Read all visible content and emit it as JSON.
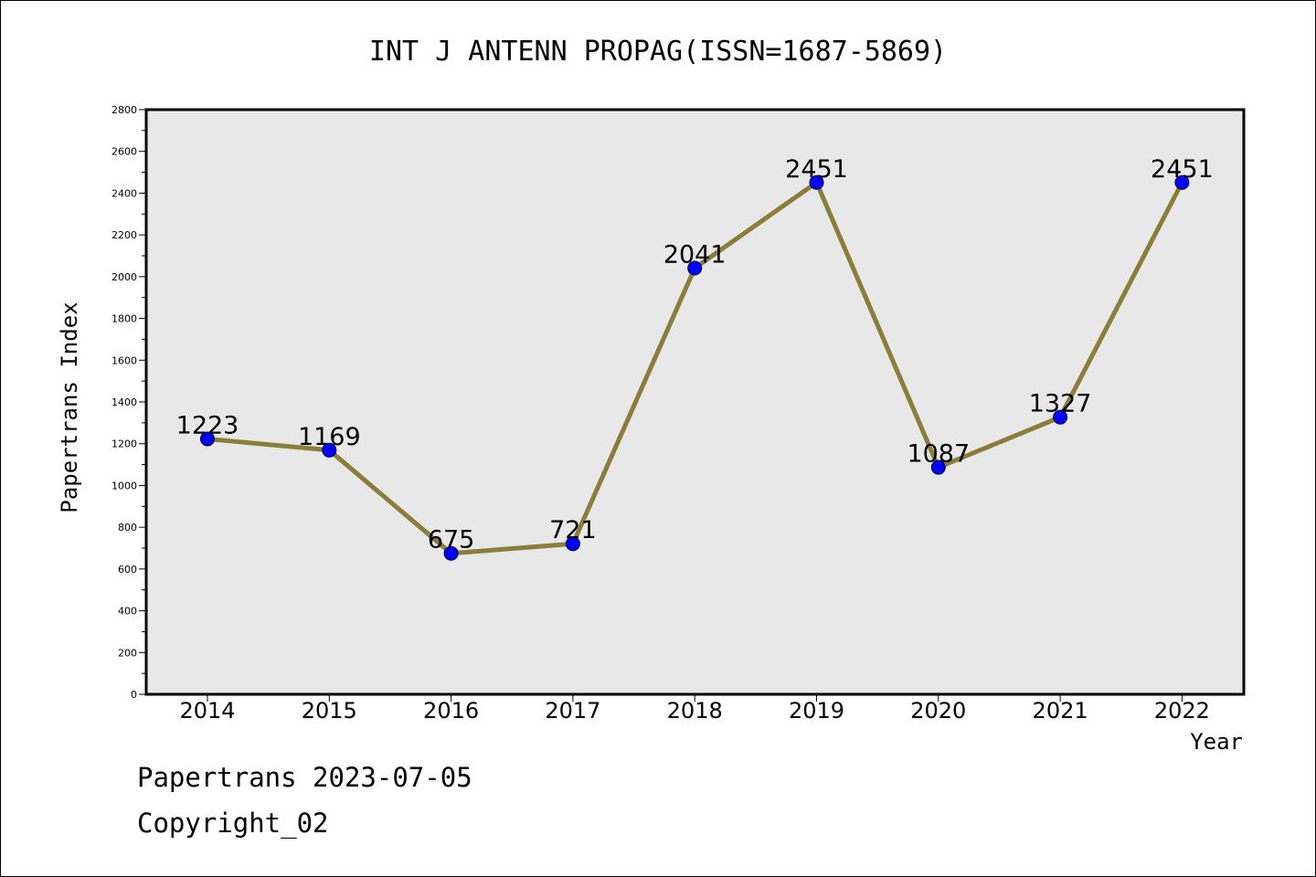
{
  "chart_data": {
    "type": "line",
    "title": "INT J ANTENN PROPAG(ISSN=1687-5869)",
    "xlabel": "Year",
    "ylabel": "Papertrans Index",
    "x": [
      "2014",
      "2015",
      "2016",
      "2017",
      "2018",
      "2019",
      "2020",
      "2021",
      "2022"
    ],
    "values": [
      1223,
      1169,
      675,
      721,
      2041,
      2451,
      1087,
      1327,
      2451
    ],
    "ylim": [
      0,
      2800
    ],
    "yticks": [
      0,
      200,
      400,
      600,
      800,
      1000,
      1200,
      1400,
      1600,
      1800,
      2000,
      2200,
      2400,
      2600,
      2800
    ],
    "grid": false,
    "line_color": "#8b7d3a",
    "marker_color": "#0000ff",
    "plot_background": "#e8e8e8"
  },
  "footer": {
    "line1": "Papertrans 2023-07-05",
    "line2": "Copyright_02"
  }
}
